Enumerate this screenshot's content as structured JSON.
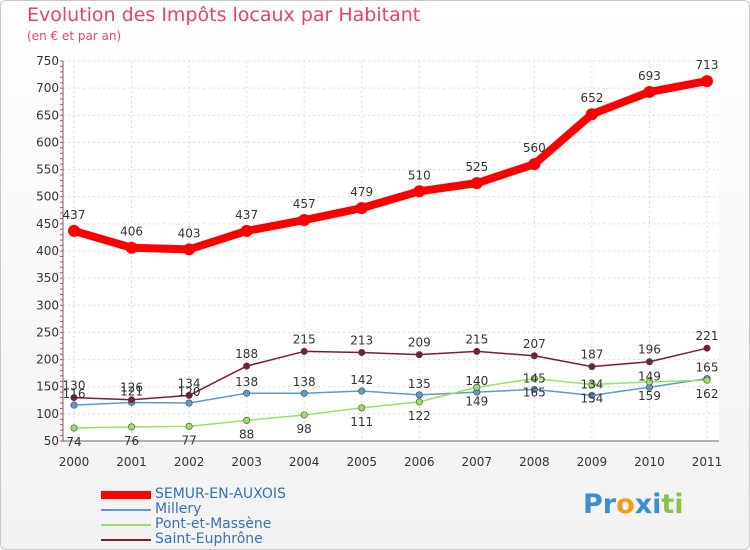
{
  "chart_data": {
    "type": "line",
    "title": "Evolution des Impôts locaux par Habitant",
    "subtitle": "(en € et par an)",
    "categories": [
      "2000",
      "2001",
      "2002",
      "2003",
      "2004",
      "2005",
      "2006",
      "2007",
      "2008",
      "2009",
      "2010",
      "2011"
    ],
    "ylim": [
      50,
      750
    ],
    "yticks": [
      50,
      100,
      150,
      200,
      250,
      300,
      350,
      400,
      450,
      500,
      550,
      600,
      650,
      700,
      750
    ],
    "grid": true,
    "legend_position": "bottom-left",
    "series": [
      {
        "name": "SEMUR-EN-AUXOIS",
        "color": "#ff0000",
        "values": [
          437,
          406,
          403,
          437,
          457,
          479,
          510,
          525,
          560,
          652,
          693,
          713
        ],
        "labels": [
          "437",
          "406",
          "403",
          "437",
          "457",
          "479",
          "510",
          "525",
          "560",
          "652",
          "693",
          "713"
        ]
      },
      {
        "name": "Millery",
        "color": "#5b9bd5",
        "values": [
          116,
          121,
          120,
          138,
          138,
          142,
          135,
          140,
          145,
          134,
          149,
          165
        ],
        "labels": [
          "116",
          "121",
          "120",
          "138",
          "138",
          "142",
          "135",
          "140",
          "145",
          "134",
          "149",
          "165"
        ]
      },
      {
        "name": "Pont-et-Massène",
        "color": "#99e066",
        "values": [
          74,
          76,
          77,
          88,
          98,
          111,
          122,
          149,
          165,
          154,
          159,
          162
        ],
        "labels": [
          "74",
          "76",
          "77",
          "88",
          "98",
          "111",
          "122",
          "149",
          "165",
          "154",
          "159",
          "162"
        ]
      },
      {
        "name": "Saint-Euphrône",
        "color": "#7a1f2b",
        "values": [
          130,
          126,
          134,
          188,
          215,
          213,
          209,
          215,
          207,
          187,
          196,
          221
        ],
        "labels": [
          "130",
          "126",
          "134",
          "188",
          "215",
          "213",
          "209",
          "215",
          "207",
          "187",
          "196",
          "221"
        ]
      }
    ]
  },
  "branding": {
    "logo_text": "Proxiti",
    "logo_letters": [
      "P",
      "r",
      "o",
      "x",
      "i",
      "t",
      "i"
    ],
    "logo_colors": [
      "#3a8fd0",
      "#3a8fd0",
      "#f39c12",
      "#3a8fd0",
      "#3a8fd0",
      "#8bc34a",
      "#8bc34a"
    ]
  }
}
